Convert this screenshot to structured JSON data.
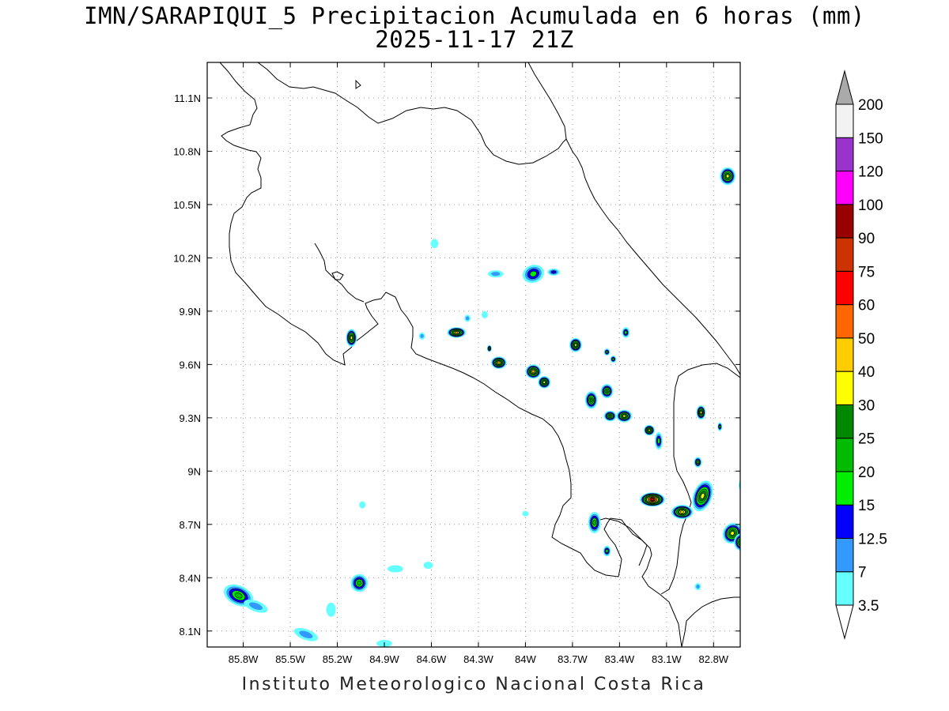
{
  "title": {
    "line1": "IMN/SARAPIQUI_5 Precipitacion Acumulada en 6 horas (mm)",
    "line2": "2025-11-17 21Z"
  },
  "credit": "Instituto Meteorologico Nacional Costa Rica",
  "map": {
    "lon_range": [
      -86.03,
      -82.63
    ],
    "lat_range": [
      8.01,
      11.3
    ],
    "x_ticks": [
      "85.8W",
      "85.5W",
      "85.2W",
      "84.9W",
      "84.6W",
      "84.3W",
      "84W",
      "83.7W",
      "83.4W",
      "83.1W",
      "82.8W"
    ],
    "y_ticks": [
      "8.1N",
      "8.4N",
      "8.7N",
      "9N",
      "9.3N",
      "9.6N",
      "9.9N",
      "10.2N",
      "10.5N",
      "10.8N",
      "11.1N"
    ],
    "grid": "dotted"
  },
  "colorbar": {
    "levels": [
      "3.5",
      "7",
      "12.5",
      "15",
      "20",
      "25",
      "30",
      "40",
      "50",
      "60",
      "75",
      "90",
      "100",
      "120",
      "150",
      "200"
    ],
    "colors": [
      "#66ffff",
      "#3399ff",
      "#0000ff",
      "#00ee00",
      "#00bb00",
      "#008800",
      "#ffff00",
      "#ffcc00",
      "#ff6600",
      "#ff0000",
      "#cc3300",
      "#990000",
      "#ff00ff",
      "#9933cc",
      "#f2f2f2",
      "#aaaaaa"
    ],
    "under_color": "#ffffff",
    "over_color": "#aaaaaa"
  }
}
